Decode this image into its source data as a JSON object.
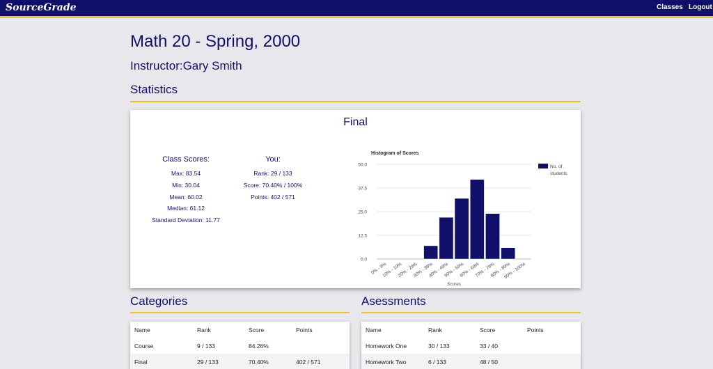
{
  "nav": {
    "brand": "SourceGrade",
    "classes": "Classes",
    "logout": "Logout"
  },
  "course": {
    "title": "Math 20 - Spring, 2000",
    "instructor": "Instructor:Gary Smith"
  },
  "sections": {
    "statistics": "Statistics",
    "categories": "Categories",
    "assessments": "Asessments"
  },
  "stats": {
    "title": "Final",
    "class_heading": "Class Scores:",
    "class_lines": [
      "Max: 83.54",
      "Min: 30.04",
      "Mean: 60.02",
      "Median: 61.12",
      "Standard Deviation: 11.77"
    ],
    "you_heading": "You:",
    "you_lines": [
      "Rank: 29 / 133",
      "Score: 70.40% / 100%",
      "Points: 402 / 571"
    ]
  },
  "chart_data": {
    "type": "bar",
    "title": "Histogram of Scores",
    "xlabel": "Scores",
    "ylabel": "",
    "categories": [
      "0% - 9%",
      "10% - 19%",
      "20% - 29%",
      "30% - 39%",
      "40% - 49%",
      "50% - 59%",
      "60% - 69%",
      "70% - 79%",
      "80% - 89%",
      "90% - 100%"
    ],
    "series": [
      {
        "name": "No. of students",
        "values": [
          0,
          0,
          0,
          7,
          22,
          32,
          42,
          24,
          6,
          0
        ]
      }
    ],
    "ylim": [
      0,
      50
    ],
    "yticks": [
      "0.0",
      "12.5",
      "25.0",
      "37.5",
      "50.0"
    ],
    "grid": true,
    "legend": "right",
    "bar_color": "#10106b"
  },
  "categories_table": {
    "headers": [
      "Name",
      "Rank",
      "Score",
      "Points"
    ],
    "rows": [
      [
        "Course",
        "9 / 133",
        "84.26%",
        ""
      ],
      [
        "Final",
        "29 / 133",
        "70.40%",
        "402 / 571"
      ]
    ]
  },
  "assessments_table": {
    "headers": [
      "Name",
      "Rank",
      "Score",
      "Points"
    ],
    "rows": [
      [
        "Homework One",
        "30 / 133",
        "33 / 40",
        ""
      ],
      [
        "Homework Two",
        "6 / 133",
        "48 / 50",
        ""
      ]
    ]
  },
  "colors": {
    "navy": "#10106b",
    "gold": "#f0c419",
    "background": "#e8e8ec"
  }
}
